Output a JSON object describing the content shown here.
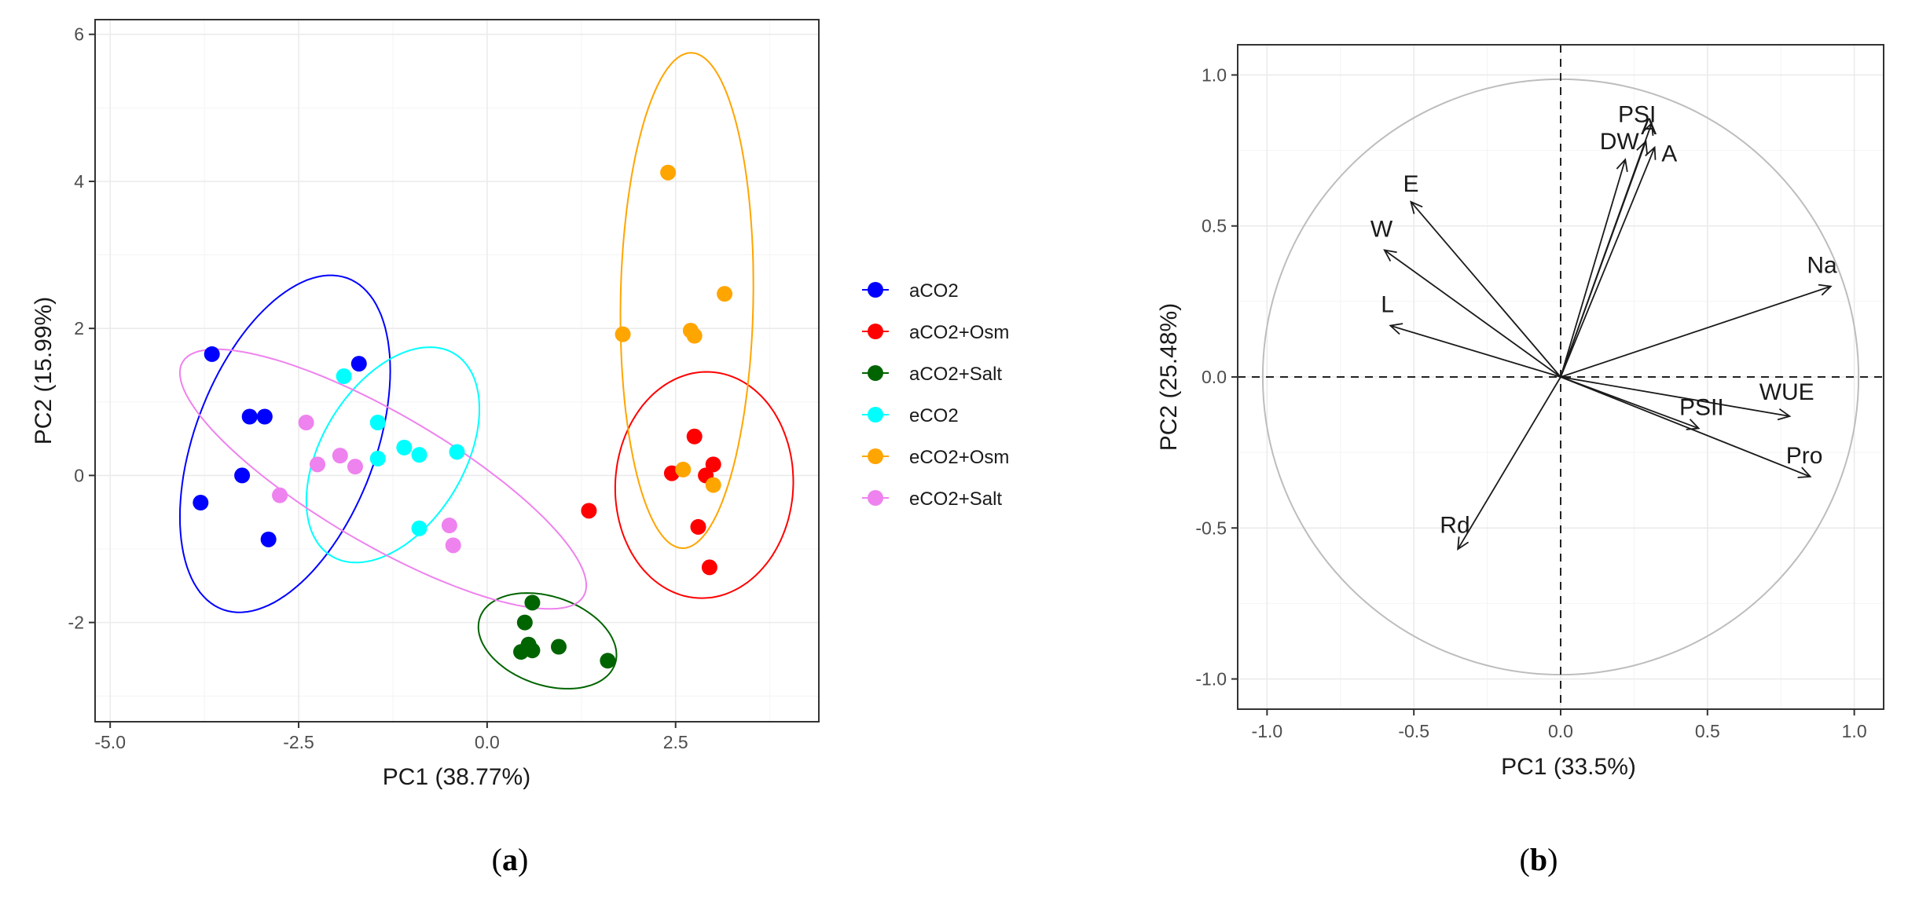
{
  "chart_data": [
    {
      "type": "scatter",
      "panel": "a",
      "xlabel": "PC1 (38.77%)",
      "ylabel": "PC2 (15.99%)",
      "xlim": [
        -5.2,
        4.4
      ],
      "ylim": [
        -3.35,
        6.2
      ],
      "xticks": [
        -5.0,
        -2.5,
        0.0,
        2.5
      ],
      "xtick_labels": [
        "-5.0",
        "-2.5",
        "0.0",
        "2.5"
      ],
      "yticks": [
        -2,
        0,
        2,
        4,
        6
      ],
      "ytick_labels": [
        "-2",
        "0",
        "2",
        "4",
        "6"
      ],
      "grid": true,
      "legend_position": "right",
      "series": [
        {
          "name": "aCO2",
          "color": "#0000ff",
          "points": [
            [
              -3.65,
              1.65
            ],
            [
              -3.15,
              0.8
            ],
            [
              -2.95,
              0.8
            ],
            [
              -3.25,
              0.0
            ],
            [
              -3.8,
              -0.37
            ],
            [
              -2.9,
              -0.87
            ],
            [
              -1.7,
              1.52
            ]
          ],
          "ellipse": {
            "cx": -2.68,
            "cy": 0.43,
            "rx": 2.4,
            "ry": 1.2,
            "angle": 70
          }
        },
        {
          "name": "aCO2+Osm",
          "color": "#ff0000",
          "points": [
            [
              2.75,
              0.53
            ],
            [
              2.45,
              0.03
            ],
            [
              2.9,
              0.0
            ],
            [
              3.0,
              0.15
            ],
            [
              2.8,
              -0.7
            ],
            [
              2.95,
              -1.25
            ],
            [
              1.35,
              -0.48
            ]
          ],
          "ellipse": {
            "cx": 2.88,
            "cy": -0.13,
            "rx": 1.54,
            "ry": 1.18,
            "angle": 87
          }
        },
        {
          "name": "aCO2+Salt",
          "color": "#006400",
          "points": [
            [
              0.6,
              -1.73
            ],
            [
              0.5,
              -2.0
            ],
            [
              0.55,
              -2.3
            ],
            [
              0.45,
              -2.4
            ],
            [
              0.6,
              -2.38
            ],
            [
              0.95,
              -2.33
            ],
            [
              1.6,
              -2.52
            ]
          ],
          "ellipse": {
            "cx": 0.8,
            "cy": -2.25,
            "rx": 0.95,
            "ry": 0.6,
            "angle": -20
          }
        },
        {
          "name": "eCO2",
          "color": "#00ffff",
          "points": [
            [
              -1.9,
              1.35
            ],
            [
              -1.45,
              0.72
            ],
            [
              -1.1,
              0.38
            ],
            [
              -0.9,
              0.28
            ],
            [
              -0.4,
              0.32
            ],
            [
              -1.45,
              0.23
            ],
            [
              -0.9,
              -0.72
            ]
          ],
          "ellipse": {
            "cx": -1.25,
            "cy": 0.28,
            "rx": 1.6,
            "ry": 0.95,
            "angle": 60
          }
        },
        {
          "name": "eCO2+Osm",
          "color": "#ffa500",
          "points": [
            [
              2.4,
              4.12
            ],
            [
              3.15,
              2.47
            ],
            [
              2.7,
              1.97
            ],
            [
              2.75,
              1.9
            ],
            [
              1.8,
              1.92
            ],
            [
              2.6,
              0.08
            ],
            [
              3.0,
              -0.13
            ]
          ],
          "ellipse": {
            "cx": 2.65,
            "cy": 2.38,
            "rx": 3.37,
            "ry": 0.88,
            "angle": 89
          }
        },
        {
          "name": "eCO2+Salt",
          "color": "#ee82ee",
          "points": [
            [
              -2.4,
              0.72
            ],
            [
              -2.25,
              0.15
            ],
            [
              -1.95,
              0.27
            ],
            [
              -1.75,
              0.12
            ],
            [
              -2.75,
              -0.27
            ],
            [
              -0.5,
              -0.68
            ],
            [
              -0.45,
              -0.95
            ]
          ],
          "ellipse": {
            "cx": -1.38,
            "cy": -0.05,
            "rx": 3.1,
            "ry": 0.88,
            "angle": -31
          }
        }
      ]
    },
    {
      "type": "biplot",
      "panel": "b",
      "xlabel": "PC1 (33.5%)",
      "ylabel": "PC2 (25.48%)",
      "xlim": [
        -1.1,
        1.1
      ],
      "ylim": [
        -1.1,
        1.1
      ],
      "xticks": [
        -1.0,
        -0.5,
        0.0,
        0.5,
        1.0
      ],
      "xtick_labels": [
        "-1.0",
        "-0.5",
        "0.0",
        "0.5",
        "1.0"
      ],
      "yticks": [
        -1.0,
        -0.5,
        0.0,
        0.5,
        1.0
      ],
      "ytick_labels": [
        "-1.0",
        "-0.5",
        "0.0",
        "0.5",
        "1.0"
      ],
      "grid": true,
      "unit_circle": true,
      "vectors": [
        {
          "name": "PSI",
          "x": 0.31,
          "y": 0.84,
          "label_x": 0.26,
          "label_y": 0.87
        },
        {
          "name": "DW",
          "x": 0.22,
          "y": 0.72,
          "label_x": 0.2,
          "label_y": 0.78
        },
        {
          "name": "A",
          "x": 0.29,
          "y": 0.78,
          "label_x": 0.37,
          "label_y": 0.74
        },
        {
          "name": "A",
          "x": 0.32,
          "y": 0.76,
          "label_x": 0.3,
          "label_y": 0.83
        },
        {
          "name": "E",
          "x": -0.51,
          "y": 0.58,
          "label_x": -0.51,
          "label_y": 0.64
        },
        {
          "name": "W",
          "x": -0.6,
          "y": 0.42,
          "label_x": -0.61,
          "label_y": 0.49
        },
        {
          "name": "L",
          "x": -0.58,
          "y": 0.17,
          "label_x": -0.59,
          "label_y": 0.24
        },
        {
          "name": "Na",
          "x": 0.92,
          "y": 0.3,
          "label_x": 0.89,
          "label_y": 0.37
        },
        {
          "name": "WUE",
          "x": 0.78,
          "y": -0.13,
          "label_x": 0.77,
          "label_y": -0.05
        },
        {
          "name": "PSII",
          "x": 0.47,
          "y": -0.17,
          "label_x": 0.48,
          "label_y": -0.1
        },
        {
          "name": "Pro",
          "x": 0.85,
          "y": -0.33,
          "label_x": 0.83,
          "label_y": -0.26
        },
        {
          "name": "Rd",
          "x": -0.35,
          "y": -0.57,
          "label_x": -0.36,
          "label_y": -0.49
        }
      ]
    }
  ],
  "captions": {
    "a": "a",
    "b": "b"
  }
}
